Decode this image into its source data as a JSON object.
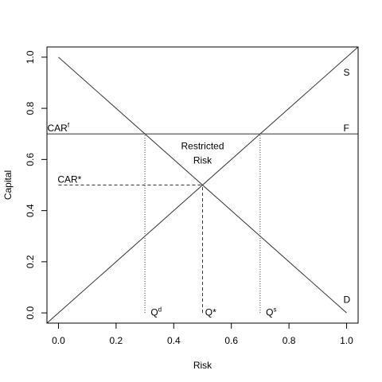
{
  "chart_data": {
    "type": "line",
    "xlabel": "Risk",
    "ylabel": "Capital",
    "xlim": [
      -0.04,
      1.04
    ],
    "ylim": [
      -0.04,
      1.04
    ],
    "x_ticks": [
      "0.0",
      "0.2",
      "0.4",
      "0.6",
      "0.8",
      "1.0"
    ],
    "y_ticks": [
      "0.0",
      "0.2",
      "0.4",
      "0.6",
      "0.8",
      "1.0"
    ],
    "grid": false,
    "series": [
      {
        "name": "S",
        "x": [
          -0.04,
          1.04
        ],
        "y": [
          -0.04,
          1.04
        ],
        "style": "solid"
      },
      {
        "name": "D",
        "x": [
          0,
          1
        ],
        "y": [
          1,
          0
        ],
        "style": "solid"
      },
      {
        "name": "F",
        "x": [
          -0.04,
          1.04
        ],
        "y": [
          0.7,
          0.7
        ],
        "style": "solid"
      }
    ],
    "reference_lines": [
      {
        "x": [
          0,
          0.5
        ],
        "y": [
          0.5,
          0.5
        ],
        "style": "dashed"
      },
      {
        "x": [
          0.5,
          0.5
        ],
        "y": [
          0,
          0.5
        ],
        "style": "dashed"
      },
      {
        "x": [
          0.3,
          0.3
        ],
        "y": [
          0,
          0.7
        ],
        "style": "dotted"
      },
      {
        "x": [
          0.7,
          0.7
        ],
        "y": [
          0,
          0.7
        ],
        "style": "dotted"
      }
    ],
    "annotations": {
      "s_label": {
        "text": "S",
        "x": 1.0,
        "y": 0.94
      },
      "f_label": {
        "text": "F",
        "x": 1.0,
        "y": 0.71
      },
      "d_label": {
        "text": "D",
        "x": 1.0,
        "y": 0.04
      },
      "car_f": {
        "text": "CAR",
        "sup": "f",
        "x": 0.0,
        "y": 0.71
      },
      "car_star": {
        "text": "CAR*",
        "x": 0.03,
        "y": 0.51
      },
      "restricted_line1": {
        "text": "Restricted",
        "x": 0.5,
        "y": 0.64
      },
      "restricted_line2": {
        "text": "Risk",
        "x": 0.5,
        "y": 0.59
      },
      "q_d": {
        "text": "Q",
        "sup": "d",
        "x": 0.32,
        "y": -0.01
      },
      "q_star": {
        "text": "Q*",
        "x": 0.52,
        "y": -0.01
      },
      "q_s": {
        "text": "Q",
        "sup": "s",
        "x": 0.72,
        "y": -0.01
      }
    },
    "colors": {
      "lines": "#333333",
      "frame": "#000000"
    }
  }
}
